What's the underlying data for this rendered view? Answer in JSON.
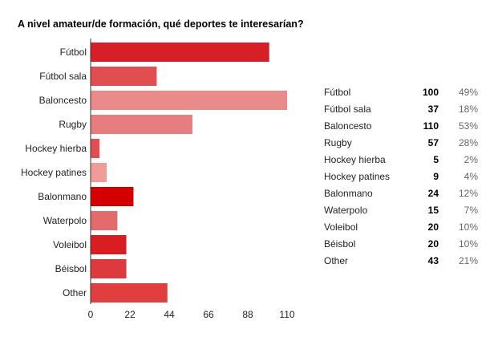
{
  "chart_data": {
    "type": "bar",
    "orientation": "horizontal",
    "title": "A nivel amateur/de formación, qué deportes te interesarían?",
    "xlabel": "",
    "ylabel": "",
    "categories": [
      "Fútbol",
      "Fútbol sala",
      "Baloncesto",
      "Rugby",
      "Hockey hierba",
      "Hockey patines",
      "Balonmano",
      "Waterpolo",
      "Voleibol",
      "Béisbol",
      "Other"
    ],
    "values": [
      100,
      37,
      110,
      57,
      5,
      9,
      24,
      15,
      20,
      20,
      43
    ],
    "percentages": [
      "49%",
      "18%",
      "53%",
      "28%",
      "2%",
      "4%",
      "12%",
      "7%",
      "10%",
      "10%",
      "21%"
    ],
    "bar_colors": [
      "#d61f26",
      "#e04e50",
      "#ea8a8a",
      "#e77d7e",
      "#df4f53",
      "#ef9c9b",
      "#d40000",
      "#e36b6b",
      "#d91e22",
      "#dd3a3d",
      "#e03e3f"
    ],
    "xlim": [
      0,
      110
    ],
    "xticks": [
      "0",
      "22",
      "44",
      "66",
      "88",
      "110"
    ],
    "grid": false,
    "legend": "none"
  }
}
